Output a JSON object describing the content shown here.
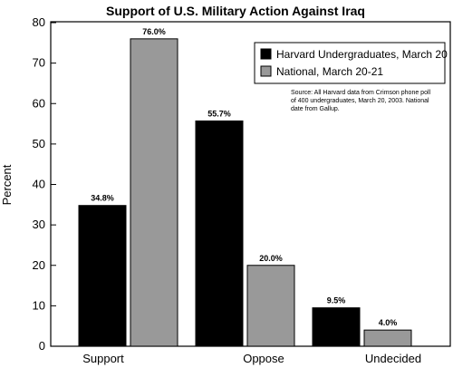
{
  "chart_data": {
    "type": "bar",
    "title": "Support of U.S. Military Action Against Iraq",
    "ylabel": "Percent",
    "xlabel": "",
    "ylim": [
      0,
      80
    ],
    "yticks": [
      "0",
      "10",
      "20",
      "30",
      "40",
      "50",
      "60",
      "70",
      "80"
    ],
    "grid": false,
    "legend_position": "top-right",
    "categories": [
      "Support",
      "Oppose",
      "Undecided"
    ],
    "series": [
      {
        "name": "Harvard Undergraduates, March 20",
        "color": "#000000",
        "values": [
          34.8,
          55.7,
          9.5
        ],
        "labels": [
          "34.8%",
          "55.7%",
          "9.5%"
        ]
      },
      {
        "name": "National, March 20-21",
        "color": "#999999",
        "values": [
          76.0,
          20.0,
          4.0
        ],
        "labels": [
          "76.0%",
          "20.0%",
          "4.0%"
        ]
      }
    ],
    "source_lines": [
      "Source: All Harvard data from Crimson phone poll",
      "of 400 undergraduates, March 20, 2003. National",
      "date from Gallup."
    ]
  }
}
